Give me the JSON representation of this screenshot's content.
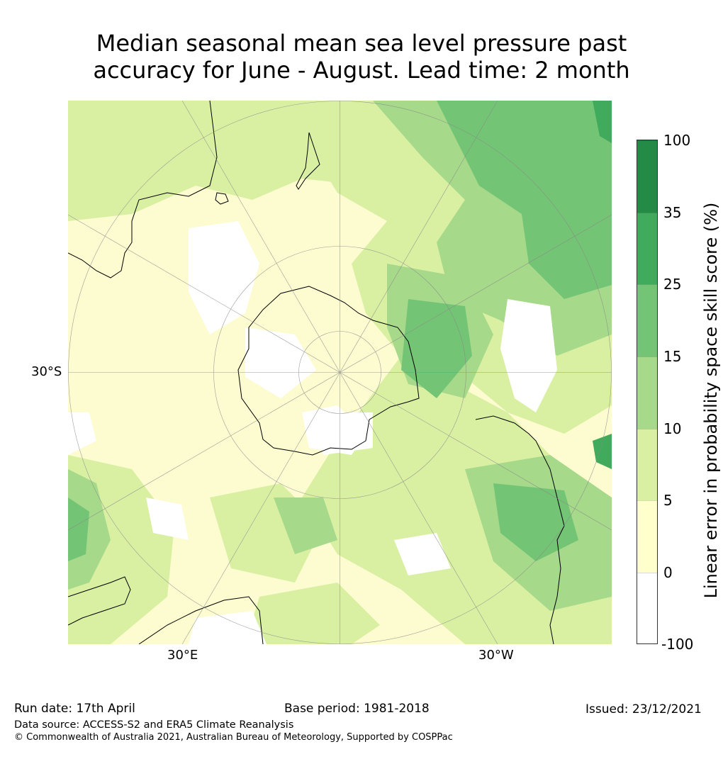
{
  "title": {
    "line1": "Median seasonal mean sea level pressure past",
    "line2": "accuracy for June - August. Lead time: 2 month"
  },
  "map": {
    "projection": "south-polar-stereographic",
    "lat_labels": {
      "lat_30s": "30°S"
    },
    "lon_labels": {
      "lon_30e": "30°E",
      "lon_30w": "30°W"
    },
    "grid": true,
    "coastlines": true
  },
  "colorbar": {
    "title": "Linear error in probability space skill score (%)",
    "ticks": [
      "100",
      "35",
      "25",
      "15",
      "10",
      "5",
      "0",
      "-100"
    ],
    "bins": [
      {
        "range": "35 to 100",
        "color": "#238b45"
      },
      {
        "range": "25 to 35",
        "color": "#41ab5d"
      },
      {
        "range": "15 to 25",
        "color": "#74c476"
      },
      {
        "range": "10 to 15",
        "color": "#a6d98a"
      },
      {
        "range": "5 to 10",
        "color": "#d9f0a3"
      },
      {
        "range": "0 to 5",
        "color": "#ffffcc"
      },
      {
        "range": "-100 to 0",
        "color": "#ffffff"
      }
    ]
  },
  "footer": {
    "run_date": "Run date: 17th April",
    "base_period": "Base period: 1981-2018",
    "issued": "Issued: 23/12/2021",
    "data_source": "Data source: ACCESS-S2 and ERA5 Climate Reanalysis",
    "copyright": "© Commonwealth of Australia 2021, Australian Bureau of Meteorology, Supported by COSPPac"
  }
}
